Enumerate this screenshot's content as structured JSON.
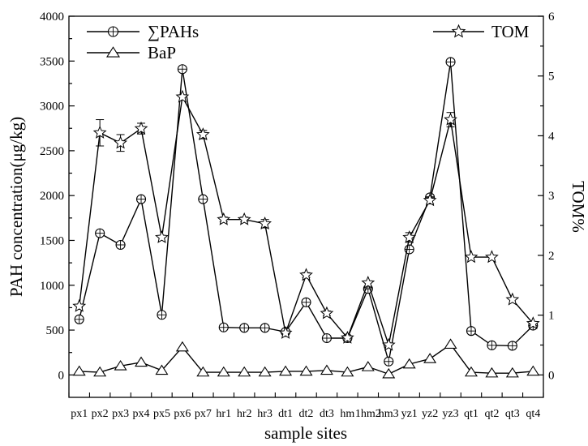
{
  "chart_data": {
    "type": "line",
    "title": "",
    "categories": [
      "px1",
      "px2",
      "px3",
      "px4",
      "px5",
      "px6",
      "px7",
      "hr1",
      "hr2",
      "hr3",
      "dt1",
      "dt2",
      "dt3",
      "hm1",
      "hm2",
      "hm3",
      "yz1",
      "yz2",
      "yz3",
      "qt1",
      "qt2",
      "qt3",
      "qt4"
    ],
    "category_labels": [
      "px1",
      "px2",
      "px3",
      "px4",
      "px5",
      "px6",
      "px7",
      "hr1",
      "hr2",
      "hr3",
      "dt1",
      "dt2",
      "dt3",
      "hm",
      "1hm2",
      "hm3",
      "yz1",
      "yz2",
      "yz3",
      "qt1",
      "qt2",
      "qt3",
      "qt4"
    ],
    "xlabel": "sample sites",
    "ylabel_left": "PAH concentration(μg/kg)",
    "ylabel_right": "TOM%",
    "ylim_left": [
      -250,
      4000
    ],
    "ylim_right": [
      -0.375,
      6
    ],
    "yticks_left": [
      0,
      500,
      1000,
      1500,
      2000,
      2500,
      3000,
      3500,
      4000
    ],
    "yticks_right": [
      0,
      1,
      2,
      3,
      4,
      5,
      6
    ],
    "series": [
      {
        "name": "∑PAHs",
        "axis": "left",
        "marker": "circle-cross",
        "values": [
          620,
          1580,
          1450,
          1960,
          670,
          3410,
          1960,
          530,
          525,
          525,
          480,
          810,
          410,
          410,
          960,
          150,
          1400,
          1980,
          3490,
          490,
          330,
          325,
          550
        ]
      },
      {
        "name": "BaP",
        "axis": "left",
        "marker": "triangle",
        "values": [
          40,
          30,
          100,
          140,
          50,
          310,
          30,
          30,
          30,
          30,
          40,
          40,
          50,
          30,
          90,
          10,
          120,
          180,
          340,
          30,
          20,
          20,
          40
        ]
      },
      {
        "name": "TOM",
        "axis": "right",
        "marker": "star",
        "values": [
          1.15,
          4.05,
          3.88,
          4.12,
          2.3,
          4.65,
          4.02,
          2.6,
          2.6,
          2.53,
          0.7,
          1.67,
          1.03,
          0.62,
          1.54,
          0.5,
          2.3,
          2.92,
          4.27,
          1.97,
          1.97,
          1.26,
          0.86
        ],
        "errors": [
          0,
          0.22,
          0.14,
          0.09,
          0,
          0,
          0.07,
          0.04,
          0.04,
          0.07,
          0,
          0.04,
          0.04,
          0,
          0,
          0,
          0.08,
          0.06,
          0.12,
          0,
          0,
          0,
          0
        ]
      }
    ],
    "legend": [
      {
        "label": "∑PAHs",
        "position": "top-left"
      },
      {
        "label": "BaP",
        "position": "top-left"
      },
      {
        "label": "TOM",
        "position": "top-right"
      }
    ],
    "grid": false
  }
}
